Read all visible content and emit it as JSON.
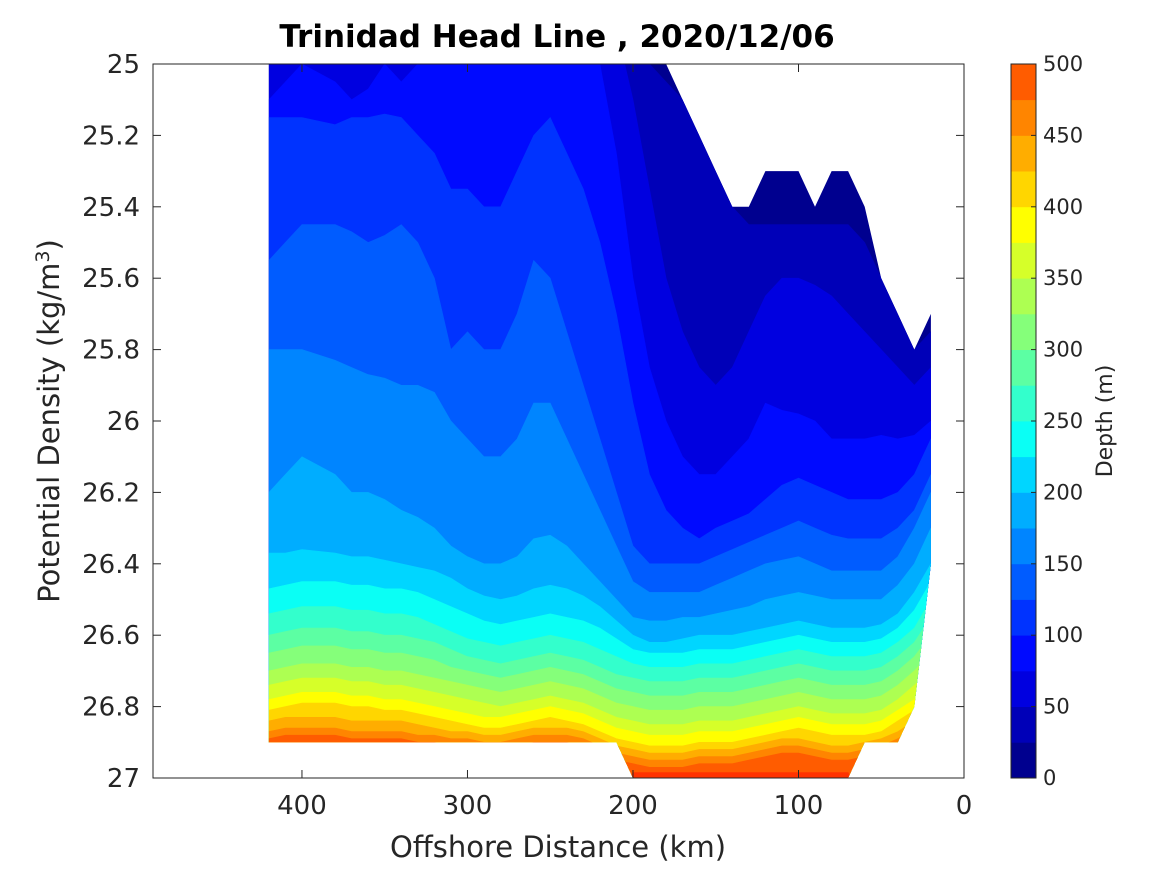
{
  "chart_data": {
    "type": "heatmap",
    "subtype": "filled-contour",
    "title": "Trinidad Head Line , 2020/12/06",
    "xlabel": "Offshore Distance (km)",
    "ylabel": "Potential Density (kg/m",
    "ylabel_sup": "3",
    "ylabel_close": ")",
    "xlim": [
      490,
      0
    ],
    "ylim": [
      25,
      27
    ],
    "x_reversed": true,
    "y_reversed": true,
    "xticks": [
      400,
      300,
      200,
      100,
      0
    ],
    "xtick_labels": [
      "400",
      "300",
      "200",
      "100",
      "0"
    ],
    "yticks": [
      25,
      25.2,
      25.4,
      25.6,
      25.8,
      26,
      26.2,
      26.4,
      26.6,
      26.8,
      27
    ],
    "ytick_labels": [
      "25",
      "25.2",
      "25.4",
      "25.6",
      "25.8",
      "26",
      "26.2",
      "26.4",
      "26.6",
      "26.8",
      "27"
    ],
    "colorbar": {
      "label": "Depth (m)",
      "range": [
        0,
        500
      ],
      "ticks": [
        0,
        50,
        100,
        150,
        200,
        250,
        300,
        350,
        400,
        450,
        500
      ],
      "tick_labels": [
        "0",
        "50",
        "100",
        "150",
        "200",
        "250",
        "300",
        "350",
        "400",
        "450",
        "500"
      ],
      "levels": [
        0,
        25,
        50,
        75,
        100,
        125,
        150,
        175,
        200,
        225,
        250,
        275,
        300,
        325,
        350,
        375,
        400,
        425,
        450,
        475,
        500
      ],
      "colormap": "jet",
      "colors": [
        "#00008F",
        "#0000B8",
        "#0000E0",
        "#000AFF",
        "#0033FF",
        "#005CFF",
        "#0085FF",
        "#00ADFF",
        "#00D6FF",
        "#0AFFF5",
        "#33FFCC",
        "#5CFFA3",
        "#85FF7A",
        "#ADFF52",
        "#D6FF29",
        "#FFFF00",
        "#FFD600",
        "#FFAD00",
        "#FF8500",
        "#FF5C00",
        "#FF3300",
        "#F50A00",
        "#CC0000",
        "#A30000"
      ]
    },
    "data_columns_km": [
      420,
      410,
      400,
      380,
      370,
      360,
      350,
      340,
      330,
      320,
      310,
      300,
      290,
      280,
      270,
      260,
      250,
      240,
      230,
      220,
      210,
      200,
      190,
      180,
      170,
      160,
      150,
      140,
      130,
      120,
      110,
      100,
      90,
      80,
      70,
      60,
      50,
      40,
      30,
      20
    ],
    "column_top_density": [
      25.0,
      25.0,
      25.0,
      25.0,
      25.0,
      25.0,
      25.0,
      25.0,
      25.0,
      25.0,
      25.0,
      25.0,
      25.0,
      25.0,
      25.0,
      25.0,
      25.0,
      25.0,
      25.0,
      25.0,
      25.0,
      25.0,
      25.0,
      25.0,
      25.1,
      25.2,
      25.3,
      25.4,
      25.4,
      25.3,
      25.3,
      25.3,
      25.4,
      25.3,
      25.3,
      25.4,
      25.6,
      25.7,
      25.8,
      25.7
    ],
    "column_bottom_density": [
      26.9,
      26.9,
      26.9,
      26.9,
      26.9,
      26.9,
      26.9,
      26.9,
      26.9,
      26.9,
      26.9,
      26.9,
      26.9,
      26.9,
      26.9,
      26.9,
      26.9,
      26.9,
      26.9,
      26.9,
      26.9,
      27.0,
      27.0,
      27.0,
      27.0,
      27.0,
      27.0,
      27.0,
      27.0,
      27.0,
      27.0,
      27.0,
      27.0,
      27.0,
      27.0,
      26.9,
      26.9,
      26.9,
      26.8,
      26.4
    ],
    "isobaths": [
      {
        "depth_m": 25,
        "sigma": [
          24.8,
          24.8,
          24.8,
          24.8,
          24.8,
          24.8,
          24.8,
          24.8,
          24.8,
          24.8,
          24.8,
          24.8,
          24.8,
          24.8,
          24.8,
          24.8,
          24.8,
          24.8,
          24.8,
          24.8,
          24.8,
          24.9,
          25.0,
          25.05,
          25.1,
          25.2,
          25.3,
          25.4,
          25.45,
          25.45,
          25.45,
          25.45,
          25.45,
          25.45,
          25.45,
          25.5,
          25.6,
          25.7,
          25.8,
          25.75
        ]
      },
      {
        "depth_m": 50,
        "sigma": [
          24.8,
          24.8,
          24.8,
          24.8,
          24.8,
          24.8,
          24.8,
          24.8,
          24.8,
          24.8,
          24.8,
          24.8,
          24.8,
          24.8,
          24.8,
          24.8,
          24.8,
          24.8,
          24.8,
          24.8,
          24.9,
          25.1,
          25.35,
          25.6,
          25.75,
          25.85,
          25.9,
          25.85,
          25.75,
          25.65,
          25.6,
          25.6,
          25.62,
          25.65,
          25.7,
          25.75,
          25.8,
          25.85,
          25.9,
          25.85
        ]
      },
      {
        "depth_m": 75,
        "sigma": [
          25.1,
          25.05,
          25.0,
          25.05,
          25.1,
          25.07,
          25.0,
          25.05,
          25.0,
          25.0,
          24.95,
          25.0,
          25.0,
          24.95,
          24.9,
          24.9,
          24.85,
          24.9,
          24.9,
          25.0,
          25.25,
          25.6,
          25.85,
          26.0,
          26.1,
          26.15,
          26.15,
          26.1,
          26.05,
          25.95,
          25.97,
          25.98,
          26.0,
          26.05,
          26.05,
          26.05,
          26.04,
          26.05,
          26.04,
          26.0
        ]
      },
      {
        "depth_m": 100,
        "sigma": [
          25.15,
          25.15,
          25.15,
          25.17,
          25.15,
          25.15,
          25.14,
          25.15,
          25.2,
          25.25,
          25.35,
          25.35,
          25.4,
          25.4,
          25.3,
          25.2,
          25.15,
          25.25,
          25.35,
          25.5,
          25.7,
          25.95,
          26.15,
          26.25,
          26.3,
          26.33,
          26.3,
          26.28,
          26.26,
          26.22,
          26.18,
          26.16,
          26.18,
          26.2,
          26.22,
          26.22,
          26.22,
          26.2,
          26.15,
          26.05
        ]
      },
      {
        "depth_m": 125,
        "sigma": [
          25.55,
          25.5,
          25.45,
          25.45,
          25.47,
          25.5,
          25.48,
          25.45,
          25.5,
          25.6,
          25.8,
          25.75,
          25.8,
          25.8,
          25.7,
          25.55,
          25.6,
          25.75,
          25.9,
          26.05,
          26.2,
          26.35,
          26.4,
          26.4,
          26.4,
          26.4,
          26.38,
          26.36,
          26.34,
          26.32,
          26.3,
          26.28,
          26.3,
          26.32,
          26.33,
          26.33,
          26.33,
          26.3,
          26.25,
          26.15
        ]
      },
      {
        "depth_m": 150,
        "sigma": [
          25.8,
          25.8,
          25.8,
          25.83,
          25.85,
          25.87,
          25.88,
          25.9,
          25.9,
          25.92,
          26.0,
          26.05,
          26.1,
          26.1,
          26.05,
          25.95,
          25.95,
          26.05,
          26.15,
          26.25,
          26.35,
          26.45,
          26.48,
          26.48,
          26.48,
          26.48,
          26.46,
          26.44,
          26.42,
          26.4,
          26.39,
          26.38,
          26.4,
          26.42,
          26.42,
          26.42,
          26.42,
          26.38,
          26.3,
          26.2
        ]
      },
      {
        "depth_m": 175,
        "sigma": [
          26.2,
          26.15,
          26.1,
          26.15,
          26.2,
          26.2,
          26.22,
          26.25,
          26.27,
          26.3,
          26.35,
          26.38,
          26.4,
          26.4,
          26.38,
          26.33,
          26.32,
          26.35,
          26.4,
          26.45,
          26.5,
          26.55,
          26.56,
          26.56,
          26.55,
          26.55,
          26.54,
          26.53,
          26.52,
          26.5,
          26.49,
          26.48,
          26.49,
          26.5,
          26.5,
          26.5,
          26.5,
          26.46,
          26.4,
          26.3
        ]
      },
      {
        "depth_m": 200,
        "sigma": [
          26.37,
          26.37,
          26.36,
          26.37,
          26.38,
          26.38,
          26.39,
          26.4,
          26.41,
          26.42,
          26.44,
          26.47,
          26.49,
          26.5,
          26.49,
          26.47,
          26.46,
          26.47,
          26.49,
          26.52,
          26.56,
          26.6,
          26.62,
          26.62,
          26.61,
          26.6,
          26.6,
          26.6,
          26.59,
          26.58,
          26.57,
          26.56,
          26.57,
          26.58,
          26.58,
          26.58,
          26.57,
          26.54,
          26.48,
          26.4
        ]
      },
      {
        "depth_m": 225,
        "sigma": [
          26.47,
          26.46,
          26.45,
          26.45,
          26.46,
          26.46,
          26.47,
          26.47,
          26.48,
          26.5,
          26.52,
          26.54,
          26.56,
          26.57,
          26.56,
          26.55,
          26.54,
          26.55,
          26.56,
          26.58,
          26.61,
          26.64,
          26.65,
          26.65,
          26.65,
          26.64,
          26.64,
          26.64,
          26.63,
          26.62,
          26.61,
          26.6,
          26.61,
          26.62,
          26.62,
          26.62,
          26.61,
          26.58,
          26.53,
          26.45
        ]
      },
      {
        "depth_m": 250,
        "sigma": [
          26.54,
          26.53,
          26.52,
          26.52,
          26.53,
          26.53,
          26.54,
          26.54,
          26.55,
          26.57,
          26.59,
          26.61,
          26.62,
          26.63,
          26.62,
          26.61,
          26.6,
          26.61,
          26.62,
          26.64,
          26.66,
          26.68,
          26.69,
          26.69,
          26.69,
          26.68,
          26.68,
          26.68,
          26.67,
          26.66,
          26.65,
          26.64,
          26.65,
          26.66,
          26.66,
          26.66,
          26.65,
          26.62,
          26.58,
          26.5
        ]
      },
      {
        "depth_m": 275,
        "sigma": [
          26.6,
          26.59,
          26.58,
          26.58,
          26.59,
          26.59,
          26.6,
          26.6,
          26.61,
          26.62,
          26.64,
          26.66,
          26.67,
          26.68,
          26.67,
          26.66,
          26.65,
          26.66,
          26.67,
          26.69,
          26.71,
          26.72,
          26.73,
          26.73,
          26.73,
          26.72,
          26.72,
          26.72,
          26.71,
          26.7,
          26.69,
          26.68,
          26.69,
          26.7,
          26.7,
          26.7,
          26.69,
          26.66,
          26.62,
          26.55
        ]
      },
      {
        "depth_m": 300,
        "sigma": [
          26.65,
          26.64,
          26.63,
          26.63,
          26.64,
          26.64,
          26.65,
          26.65,
          26.66,
          26.67,
          26.69,
          26.7,
          26.71,
          26.72,
          26.71,
          26.7,
          26.69,
          26.7,
          26.71,
          26.73,
          26.75,
          26.76,
          26.77,
          26.77,
          26.77,
          26.76,
          26.76,
          26.76,
          26.75,
          26.74,
          26.73,
          26.72,
          26.73,
          26.74,
          26.74,
          26.74,
          26.73,
          26.7,
          26.66,
          26.6
        ]
      },
      {
        "depth_m": 325,
        "sigma": [
          26.7,
          26.69,
          26.68,
          26.68,
          26.69,
          26.69,
          26.7,
          26.7,
          26.71,
          26.72,
          26.73,
          26.74,
          26.75,
          26.76,
          26.75,
          26.74,
          26.73,
          26.74,
          26.75,
          26.77,
          26.79,
          26.8,
          26.81,
          26.81,
          26.81,
          26.8,
          26.8,
          26.8,
          26.79,
          26.78,
          26.77,
          26.76,
          26.77,
          26.78,
          26.78,
          26.78,
          26.77,
          26.74,
          26.7,
          26.65
        ]
      },
      {
        "depth_m": 350,
        "sigma": [
          26.74,
          26.73,
          26.72,
          26.72,
          26.73,
          26.73,
          26.74,
          26.74,
          26.75,
          26.76,
          26.77,
          26.78,
          26.79,
          26.8,
          26.79,
          26.78,
          26.77,
          26.78,
          26.79,
          26.81,
          26.83,
          26.84,
          26.85,
          26.85,
          26.85,
          26.84,
          26.84,
          26.84,
          26.83,
          26.82,
          26.81,
          26.8,
          26.81,
          26.82,
          26.82,
          26.82,
          26.81,
          26.78,
          26.74,
          26.7
        ]
      },
      {
        "depth_m": 375,
        "sigma": [
          26.78,
          26.77,
          26.76,
          26.76,
          26.77,
          26.77,
          26.78,
          26.78,
          26.79,
          26.8,
          26.81,
          26.82,
          26.83,
          26.83,
          26.82,
          26.81,
          26.8,
          26.81,
          26.82,
          26.84,
          26.86,
          26.87,
          26.88,
          26.88,
          26.88,
          26.87,
          26.87,
          26.87,
          26.86,
          26.85,
          26.84,
          26.83,
          26.84,
          26.85,
          26.85,
          26.85,
          26.84,
          26.81,
          26.78,
          26.74
        ]
      },
      {
        "depth_m": 400,
        "sigma": [
          26.81,
          26.8,
          26.79,
          26.79,
          26.8,
          26.8,
          26.81,
          26.81,
          26.82,
          26.83,
          26.84,
          26.85,
          26.86,
          26.86,
          26.85,
          26.84,
          26.83,
          26.84,
          26.85,
          26.87,
          26.89,
          26.9,
          26.91,
          26.91,
          26.91,
          26.9,
          26.9,
          26.9,
          26.89,
          26.88,
          26.87,
          26.86,
          26.87,
          26.88,
          26.88,
          26.88,
          26.87,
          26.84,
          26.81,
          26.77
        ]
      },
      {
        "depth_m": 425,
        "sigma": [
          26.84,
          26.83,
          26.83,
          26.83,
          26.84,
          26.84,
          26.84,
          26.84,
          26.85,
          26.86,
          26.87,
          26.87,
          26.88,
          26.88,
          26.87,
          26.86,
          26.86,
          26.86,
          26.87,
          26.89,
          26.91,
          26.92,
          26.93,
          26.93,
          26.93,
          26.92,
          26.92,
          26.92,
          26.91,
          26.9,
          26.89,
          26.89,
          26.9,
          26.91,
          26.91,
          26.9,
          26.89,
          26.87,
          26.84,
          26.8
        ]
      },
      {
        "depth_m": 450,
        "sigma": [
          26.87,
          26.86,
          26.86,
          26.86,
          26.87,
          26.87,
          26.87,
          26.87,
          26.88,
          26.88,
          26.89,
          26.89,
          26.9,
          26.9,
          26.89,
          26.88,
          26.88,
          26.88,
          26.89,
          26.91,
          26.93,
          26.94,
          26.95,
          26.95,
          26.95,
          26.94,
          26.94,
          26.94,
          26.93,
          26.92,
          26.91,
          26.91,
          26.92,
          26.93,
          26.93,
          26.92,
          26.91,
          26.89,
          26.86,
          26.82
        ]
      },
      {
        "depth_m": 475,
        "sigma": [
          26.89,
          26.88,
          26.88,
          26.88,
          26.89,
          26.89,
          26.89,
          26.89,
          26.9,
          26.9,
          26.91,
          26.91,
          26.92,
          26.92,
          26.91,
          26.9,
          26.9,
          26.9,
          26.91,
          26.93,
          26.95,
          26.96,
          26.97,
          26.97,
          26.97,
          26.96,
          26.96,
          26.96,
          26.95,
          26.94,
          26.93,
          26.93,
          26.94,
          26.95,
          26.95,
          26.94,
          26.93,
          26.91,
          26.88,
          26.84
        ]
      },
      {
        "depth_m": 500,
        "sigma": [
          27.1,
          27.1,
          27.1,
          27.1,
          27.1,
          27.1,
          27.1,
          27.1,
          27.1,
          27.1,
          27.1,
          27.1,
          27.1,
          27.1,
          27.1,
          27.1,
          27.1,
          27.1,
          27.1,
          27.1,
          27.1,
          26.985,
          26.985,
          26.985,
          26.985,
          26.985,
          26.985,
          26.985,
          26.985,
          26.985,
          26.985,
          26.985,
          26.985,
          26.985,
          26.985,
          27.1,
          27.1,
          27.1,
          27.1,
          27.1
        ]
      }
    ]
  }
}
